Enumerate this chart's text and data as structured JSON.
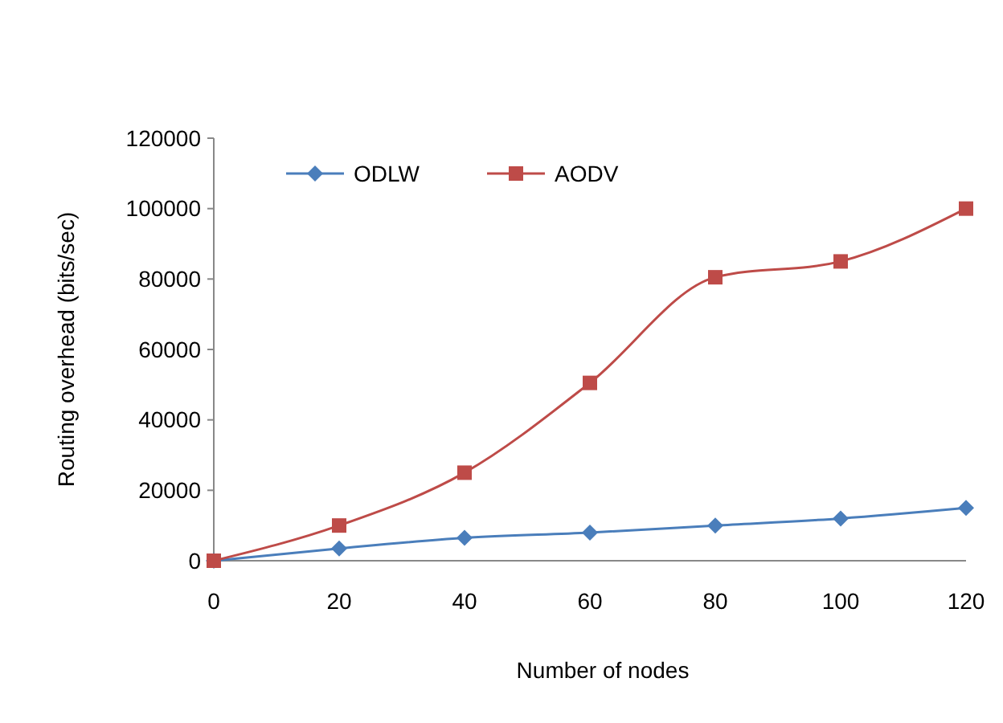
{
  "chart_data": {
    "type": "line",
    "xlabel": "Number of nodes",
    "ylabel": "Routing overhead (bits/sec)",
    "x": [
      0,
      20,
      40,
      60,
      80,
      100,
      120
    ],
    "series": [
      {
        "name": "ODLW",
        "color": "#4a7ebb",
        "marker": "diamond",
        "values": [
          0,
          3500,
          6500,
          8000,
          10000,
          12000,
          15000
        ]
      },
      {
        "name": "AODV",
        "color": "#be4b48",
        "marker": "square",
        "values": [
          0,
          10000,
          25000,
          50500,
          80500,
          85000,
          100000
        ]
      }
    ],
    "xlim": [
      0,
      120
    ],
    "xticks": [
      0,
      20,
      40,
      60,
      80,
      100,
      120
    ],
    "ylim": [
      0,
      120000
    ],
    "yticks": [
      0,
      20000,
      40000,
      60000,
      80000,
      100000,
      120000
    ],
    "grid": false,
    "legend": "top left",
    "line_style": "solid"
  }
}
